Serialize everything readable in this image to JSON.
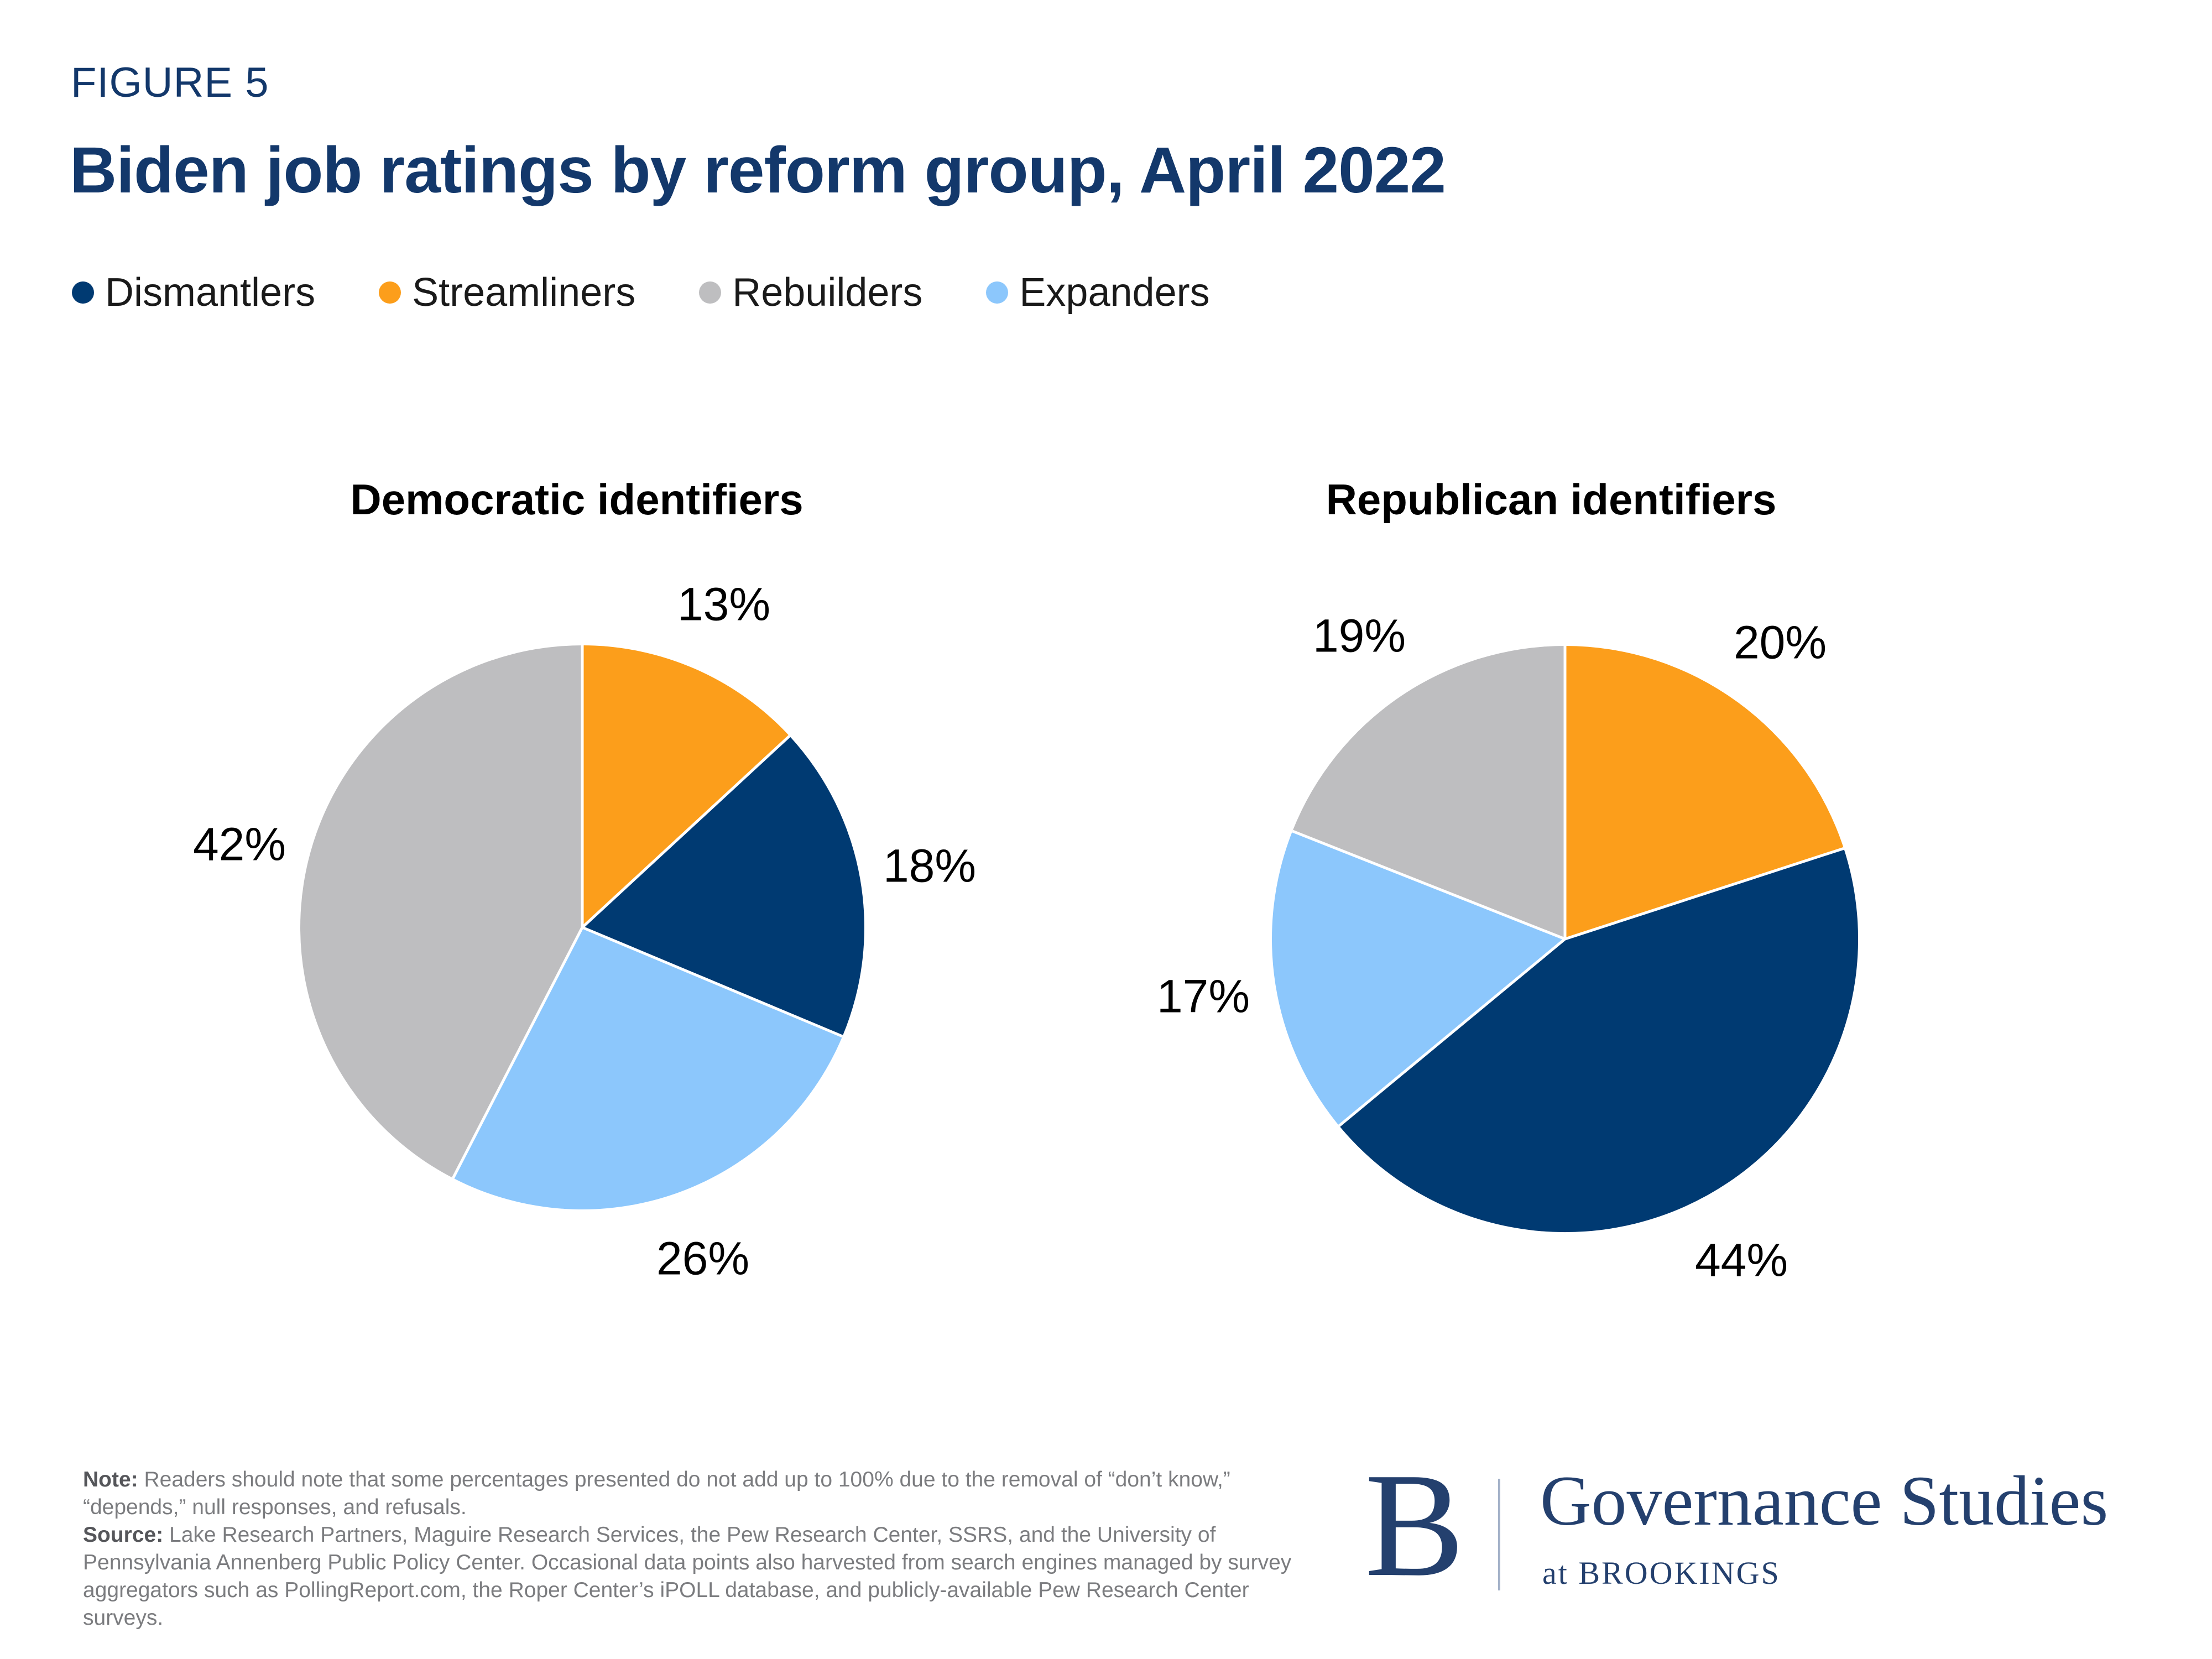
{
  "figure_label": "FIGURE 5",
  "title": "Biden job ratings by reform group, April 2022",
  "colors": {
    "dismantlers": "#003A72",
    "streamliners": "#FC9E1B",
    "rebuilders": "#BEBEC0",
    "expanders": "#8CC7FC",
    "heading_navy": "#13386B"
  },
  "legend": [
    {
      "group": "dismantlers",
      "label": "Dismantlers"
    },
    {
      "group": "streamliners",
      "label": "Streamliners"
    },
    {
      "group": "rebuilders",
      "label": "Rebuilders"
    },
    {
      "group": "expanders",
      "label": "Expanders"
    }
  ],
  "chart_data": [
    {
      "type": "pie",
      "title": "Democratic identifiers",
      "start_angle_deg": 0,
      "direction": "clockwise",
      "slices": [
        {
          "group": "streamliners",
          "label": "Streamliners",
          "value": 13,
          "display": "13%"
        },
        {
          "group": "dismantlers",
          "label": "Dismantlers",
          "value": 18,
          "display": "18%"
        },
        {
          "group": "expanders",
          "label": "Expanders",
          "value": 26,
          "display": "26%"
        },
        {
          "group": "rebuilders",
          "label": "Rebuilders",
          "value": 42,
          "display": "42%"
        }
      ]
    },
    {
      "type": "pie",
      "title": "Republican identifiers",
      "start_angle_deg": 0,
      "direction": "clockwise",
      "slices": [
        {
          "group": "streamliners",
          "label": "Streamliners",
          "value": 20,
          "display": "20%"
        },
        {
          "group": "dismantlers",
          "label": "Dismantlers",
          "value": 44,
          "display": "44%"
        },
        {
          "group": "expanders",
          "label": "Expanders",
          "value": 17,
          "display": "17%"
        },
        {
          "group": "rebuilders",
          "label": "Rebuilders",
          "value": 19,
          "display": "19%"
        }
      ]
    }
  ],
  "footer": {
    "note_label": "Note:",
    "note_text": "Readers should note that some percentages presented do not add up to 100% due to the removal of “don’t know,” “depends,” null responses, and refusals.",
    "source_label": "Source:",
    "source_text": "Lake Research Partners, Maguire Research Services, the Pew Research Center, SSRS, and the University of Pennsylvania Annenberg Public Policy Center. Occasional data points also harvested from search engines managed by survey aggregators such as PollingReport.com, the Roper Center’s iPOLL database, and publicly-available Pew Research Center surveys."
  },
  "logo": {
    "monogram": "B",
    "name": "Governance Studies",
    "tagline": "at BROOKINGS"
  }
}
